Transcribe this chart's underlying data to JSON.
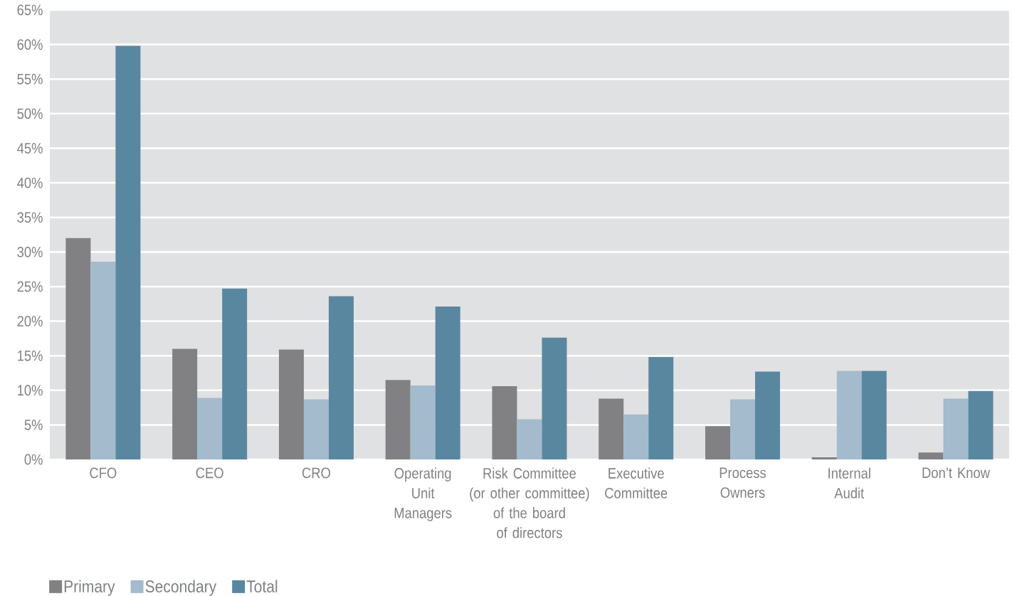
{
  "chart_data": {
    "type": "bar",
    "categories": [
      "CFO",
      "CEO",
      "CRO",
      "Operating\nUnit\nManagers",
      "Risk Committee\n(or other committee)\nof the board\nof directors",
      "Executive\nCommittee",
      "Process\nOwners",
      "Internal\nAudit",
      "Don’t Know"
    ],
    "series": [
      {
        "name": "Primary",
        "color": "#818183",
        "values": [
          32,
          16,
          15.9,
          11.5,
          10.6,
          8.8,
          4.8,
          0.3,
          1
        ]
      },
      {
        "name": "Secondary",
        "color": "#a4bacd",
        "values": [
          28.6,
          8.9,
          8.7,
          10.7,
          5.8,
          6.5,
          8.7,
          12.8,
          8.8
        ]
      },
      {
        "name": "Total",
        "color": "#5a87a0",
        "values": [
          59.8,
          24.7,
          23.6,
          22.1,
          17.6,
          14.8,
          12.7,
          12.8,
          9.9
        ]
      }
    ],
    "ylim": [
      0,
      65
    ],
    "yticks": [
      {
        "value": 0,
        "label": "0%"
      },
      {
        "value": 5,
        "label": "5%"
      },
      {
        "value": 10,
        "label": "10%"
      },
      {
        "value": 15,
        "label": "15%"
      },
      {
        "value": 20,
        "label": "20%"
      },
      {
        "value": 25,
        "label": "25%"
      },
      {
        "value": 30,
        "label": "30%"
      },
      {
        "value": 35,
        "label": "35%"
      },
      {
        "value": 40,
        "label": "40%"
      },
      {
        "value": 45,
        "label": "45%"
      },
      {
        "value": 50,
        "label": "50%"
      },
      {
        "value": 55,
        "label": "55%"
      },
      {
        "value": 60,
        "label": "60%"
      },
      {
        "value": 65,
        "label": "65%"
      }
    ],
    "grid": "y",
    "legend": "bottom left"
  }
}
